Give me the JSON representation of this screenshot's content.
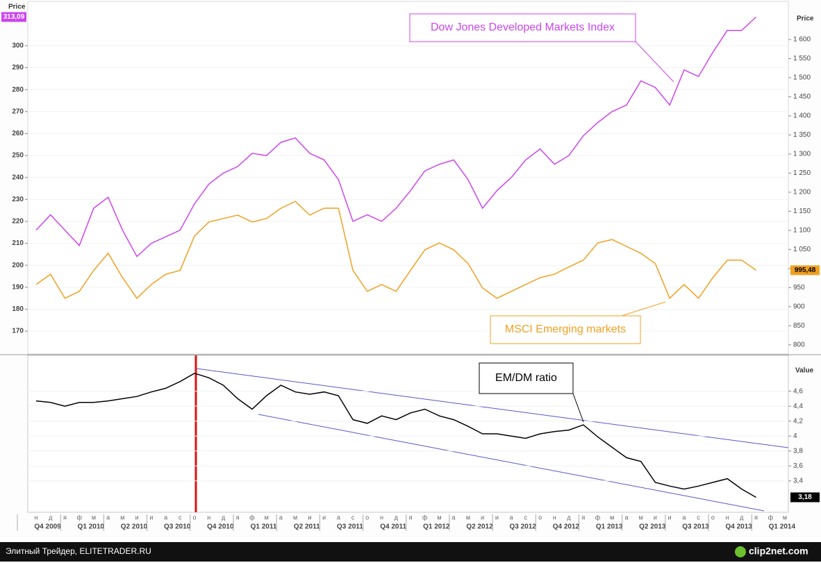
{
  "chart_data": [
    {
      "type": "line",
      "y_label": "Price",
      "y2_label": "Price",
      "ylim": [
        159.6,
        320.2
      ],
      "yticks": [
        170,
        180,
        190,
        200,
        210,
        220,
        230,
        240,
        250,
        260,
        270,
        280,
        290,
        300
      ],
      "y2lim": [
        776,
        1700
      ],
      "y2ticks": [
        800,
        850,
        900,
        950,
        {
          "value": 1000,
          "label": "1 000"
        },
        {
          "value": 1050,
          "label": "1 050"
        },
        {
          "value": 1100,
          "label": "1 100"
        },
        {
          "value": 1150,
          "label": "1 150"
        },
        {
          "value": 1200,
          "label": "1 200"
        },
        {
          "value": 1250,
          "label": "1 250"
        },
        {
          "value": 1300,
          "label": "1 300"
        },
        {
          "value": 1350,
          "label": "1 350"
        },
        {
          "value": 1400,
          "label": "1 400"
        },
        {
          "value": 1450,
          "label": "1 450"
        },
        {
          "value": 1500,
          "label": "1 500"
        },
        {
          "value": 1550,
          "label": "1 550"
        },
        {
          "value": 1600,
          "label": "1 600"
        }
      ],
      "series": [
        {
          "name": "Dow Jones Developed Markets Index",
          "color": "#cc44ee",
          "axis": "y",
          "values": [
            216,
            223,
            216,
            209,
            226,
            231,
            216,
            204,
            210,
            213,
            216,
            228,
            237,
            242,
            245,
            251,
            250,
            256,
            258,
            251,
            248,
            239,
            220,
            223,
            220,
            226,
            234,
            243,
            246,
            248,
            239,
            226,
            234,
            240,
            248,
            253,
            246,
            250,
            259,
            265,
            270,
            273,
            284,
            281,
            273,
            289,
            286,
            297,
            307,
            307,
            313.09,
            null,
            null
          ],
          "value_labels": [
            null,
            null,
            null,
            null,
            null,
            null,
            null,
            null,
            null,
            null,
            null,
            null,
            null,
            null,
            null,
            null,
            null,
            null,
            null,
            null,
            null,
            null,
            null,
            null,
            null,
            null,
            null,
            null,
            null,
            null,
            null,
            null,
            null,
            null,
            null,
            null,
            null,
            null,
            null,
            null,
            null,
            null,
            null,
            null,
            null,
            null,
            null,
            null,
            null,
            null,
            "313,09",
            null,
            null
          ]
        },
        {
          "name": "MSCI Emerging markets",
          "color": "#f0a020",
          "axis": "y2",
          "values": [
            958,
            985,
            922,
            940,
            995,
            1040,
            976,
            922,
            958,
            985,
            995,
            1085,
            1122,
            1131,
            1140,
            1122,
            1131,
            1158,
            1176,
            1140,
            1158,
            1158,
            995,
            940,
            958,
            940,
            995,
            1049,
            1067,
            1049,
            1013,
            949,
            922,
            940,
            958,
            976,
            985,
            1004,
            1022,
            1067,
            1076,
            1058,
            1040,
            1013,
            922,
            958,
            922,
            976,
            1022,
            1022,
            995.48,
            null,
            null
          ],
          "value_labels": [
            null,
            null,
            null,
            null,
            null,
            null,
            null,
            null,
            null,
            null,
            null,
            null,
            null,
            null,
            null,
            null,
            null,
            null,
            null,
            null,
            null,
            null,
            null,
            null,
            null,
            null,
            null,
            null,
            null,
            null,
            null,
            null,
            null,
            null,
            null,
            null,
            null,
            null,
            null,
            null,
            null,
            null,
            null,
            null,
            null,
            null,
            null,
            null,
            null,
            null,
            "995,48",
            null,
            null
          ]
        }
      ]
    },
    {
      "type": "line",
      "y_label": "Value",
      "y_axis_side": "right",
      "ylim": [
        2.98,
        5.08
      ],
      "yticks": [
        {
          "value": 3.4,
          "label": "3,4"
        },
        {
          "value": 3.6,
          "label": "3,6"
        },
        {
          "value": 3.8,
          "label": "3,8"
        },
        4,
        {
          "value": 4.2,
          "label": "4,2"
        },
        {
          "value": 4.4,
          "label": "4,4"
        },
        {
          "value": 4.6,
          "label": "4,6"
        }
      ],
      "categories": [
        "н",
        "д",
        "я",
        "ф",
        "м",
        "а",
        "м",
        "и",
        "и",
        "а",
        "с",
        "о",
        "н",
        "д",
        "я",
        "ф",
        "м",
        "а",
        "м",
        "и",
        "и",
        "а",
        "с",
        "о",
        "н",
        "д",
        "я",
        "ф",
        "м",
        "а",
        "м",
        "и",
        "и",
        "а",
        "с",
        "о",
        "н",
        "д",
        "я",
        "ф",
        "м",
        "а",
        "м",
        "и",
        "и",
        "а",
        "с",
        "о",
        "н",
        "д",
        "я",
        "ф",
        "м"
      ],
      "quarter_labels": [
        "Q4 2009",
        "Q1 2010",
        "Q2 2010",
        "Q3 2010",
        "Q4 2010",
        "Q1 2011",
        "Q2 2011",
        "Q3 2011",
        "Q4 2011",
        "Q1 2012",
        "Q2 2012",
        "Q3 2012",
        "Q4 2012",
        "Q1 2013",
        "Q2 2013",
        "Q3 2013",
        "Q4 2013",
        "Q1 2014"
      ],
      "series": [
        {
          "name": "EM/DM ratio",
          "color": "#000000",
          "axis": "y",
          "values": [
            4.47,
            4.45,
            4.4,
            4.45,
            4.45,
            4.47,
            4.5,
            4.53,
            4.59,
            4.64,
            4.73,
            4.84,
            4.78,
            4.68,
            4.5,
            4.36,
            4.54,
            4.68,
            4.59,
            4.56,
            4.59,
            4.54,
            4.22,
            4.17,
            4.27,
            4.22,
            4.31,
            4.36,
            4.27,
            4.22,
            4.13,
            4.03,
            4.03,
            4,
            3.97,
            4.03,
            4.06,
            4.08,
            4.15,
            3.99,
            3.85,
            3.71,
            3.66,
            3.38,
            3.33,
            3.29,
            3.33,
            3.38,
            3.43,
            3.29,
            3.18,
            null,
            null
          ],
          "value_labels": [
            null,
            null,
            null,
            null,
            null,
            null,
            null,
            null,
            null,
            null,
            null,
            null,
            null,
            null,
            null,
            null,
            null,
            null,
            null,
            null,
            null,
            null,
            null,
            null,
            null,
            null,
            null,
            null,
            null,
            null,
            null,
            null,
            null,
            null,
            null,
            null,
            null,
            null,
            null,
            null,
            null,
            null,
            null,
            null,
            null,
            null,
            null,
            null,
            null,
            null,
            "3,18",
            null,
            null
          ]
        }
      ]
    }
  ],
  "footer": {
    "source": "Элитный Трейдер, ELITETRADER.RU",
    "brand": "clip2net.com"
  }
}
